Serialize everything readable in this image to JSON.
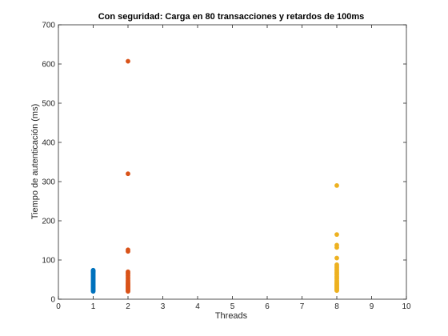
{
  "chart_data": {
    "type": "scatter",
    "title": "Con seguridad: Carga en 80 transacciones y retardos de 100ms",
    "xlabel": "Threads",
    "ylabel": "Tiempo de autenticación (ms)",
    "xlim": [
      0,
      10
    ],
    "ylim": [
      0,
      700
    ],
    "xticks": [
      "0",
      "1",
      "2",
      "3",
      "4",
      "5",
      "6",
      "7",
      "8",
      "9",
      "10"
    ],
    "yticks": [
      "0",
      "100",
      "200",
      "300",
      "400",
      "500",
      "600",
      "700"
    ],
    "grid": false,
    "legend": "none",
    "series": [
      {
        "color": "#0072BD",
        "x": [
          1,
          1,
          1,
          1,
          1,
          1,
          1,
          1,
          1,
          1,
          1,
          1,
          1,
          1,
          1,
          1,
          1,
          1,
          1,
          1,
          1,
          1,
          1,
          1,
          1,
          1,
          1,
          1,
          1,
          1
        ],
        "y": [
          20,
          22,
          24,
          26,
          28,
          30,
          32,
          34,
          36,
          38,
          40,
          42,
          44,
          46,
          48,
          50,
          52,
          54,
          56,
          58,
          60,
          62,
          64,
          66,
          68,
          70,
          71,
          72,
          73,
          74
        ]
      },
      {
        "color": "#D95319",
        "x": [
          2,
          2,
          2,
          2,
          2,
          2,
          2,
          2,
          2,
          2,
          2,
          2,
          2,
          2,
          2,
          2,
          2,
          2,
          2,
          2,
          2,
          2,
          2,
          2
        ],
        "y": [
          607,
          320,
          126,
          122,
          70,
          67,
          64,
          60,
          56,
          52,
          48,
          45,
          42,
          40,
          38,
          36,
          34,
          32,
          30,
          28,
          26,
          24,
          22,
          20
        ]
      },
      {
        "color": "#EDB120",
        "x": [
          8,
          8,
          8,
          8,
          8,
          8,
          8,
          8,
          8,
          8,
          8,
          8,
          8,
          8,
          8,
          8,
          8,
          8,
          8,
          8,
          8,
          8,
          8,
          8,
          8,
          8,
          8,
          8,
          8
        ],
        "y": [
          290,
          165,
          138,
          132,
          105,
          88,
          84,
          80,
          76,
          72,
          68,
          65,
          62,
          58,
          55,
          52,
          48,
          45,
          42,
          40,
          38,
          36,
          34,
          32,
          30,
          28,
          26,
          24,
          22
        ]
      }
    ]
  }
}
